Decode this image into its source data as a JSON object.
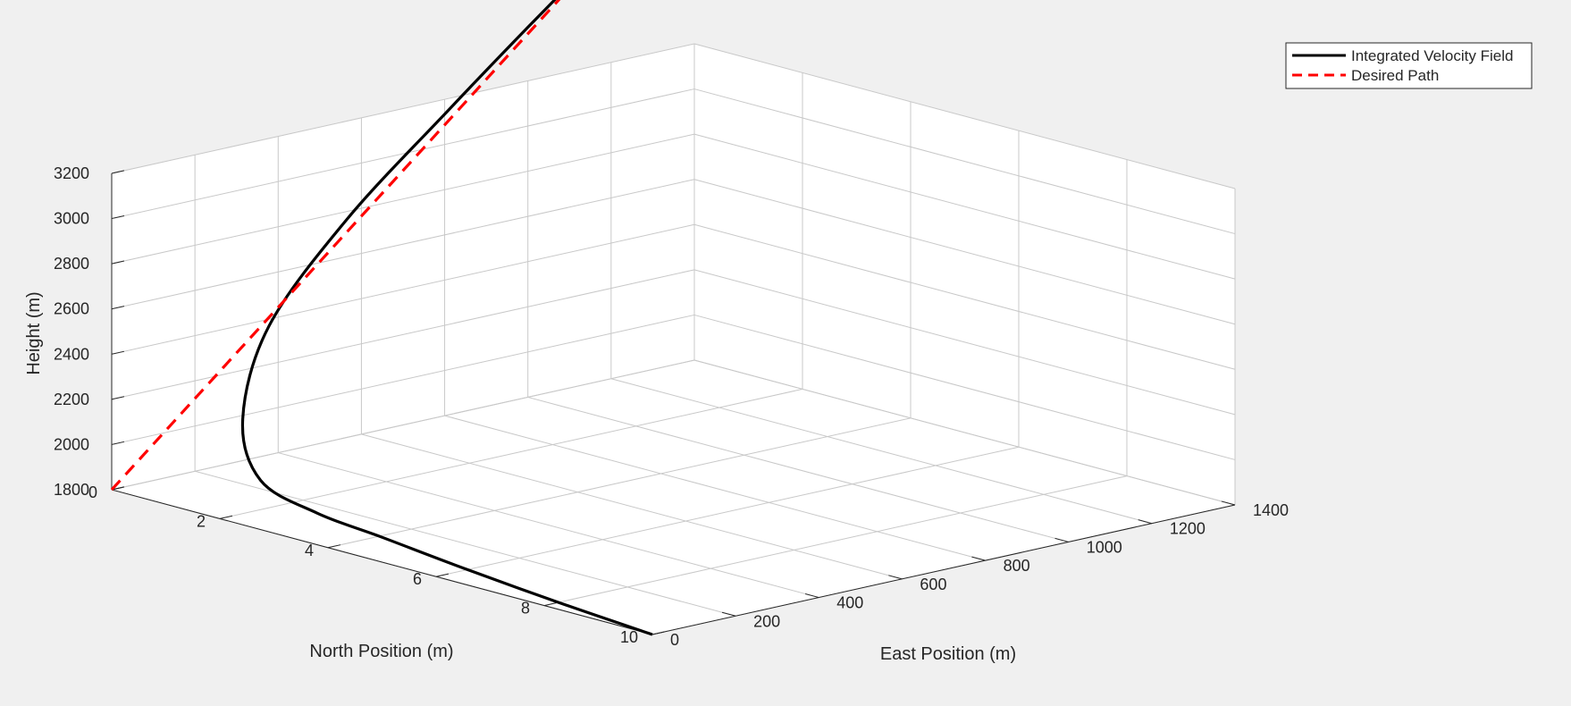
{
  "chart_data": {
    "type": "line",
    "projection": "3d",
    "title": "",
    "xlabel": "North Position (m)",
    "ylabel": "East Position (m)",
    "zlabel": "Height (m)",
    "xlim": [
      0,
      10
    ],
    "ylim": [
      0,
      1400
    ],
    "zlim": [
      1800,
      3200
    ],
    "xticks": [
      0,
      2,
      4,
      6,
      8,
      10
    ],
    "yticks": [
      0,
      200,
      400,
      600,
      800,
      1000,
      1200,
      1400
    ],
    "zticks": [
      1800,
      2000,
      2200,
      2400,
      2600,
      2800,
      3000,
      3200
    ],
    "grid": true,
    "legend": {
      "position": "top-right",
      "entries": [
        "Integrated Velocity Field",
        "Desired Path"
      ]
    },
    "series": [
      {
        "name": "Integrated Velocity Field",
        "color": "#000000",
        "line_style": "solid",
        "x": [
          10,
          8.3,
          6.5,
          5.0,
          3.8,
          2.6,
          1.5,
          0.6,
          0.2,
          0.05,
          0.01,
          0.0
        ],
        "y": [
          0,
          0,
          0,
          0,
          0,
          20,
          120,
          300,
          540,
          800,
          1000,
          1200
        ],
        "z": [
          1800,
          1830,
          1870,
          1910,
          1940,
          2000,
          2160,
          2440,
          2790,
          3150,
          3440,
          3730
        ]
      },
      {
        "name": "Desired Path",
        "color": "#ff0000",
        "line_style": "dashed",
        "x": [
          0,
          0
        ],
        "y": [
          0,
          1200
        ],
        "z": [
          1800,
          3730
        ]
      }
    ]
  },
  "colors": {
    "background": "#f0f0f0",
    "plot_area": "#ffffff",
    "grid": "#c8c8c8",
    "axis": "#262626"
  }
}
